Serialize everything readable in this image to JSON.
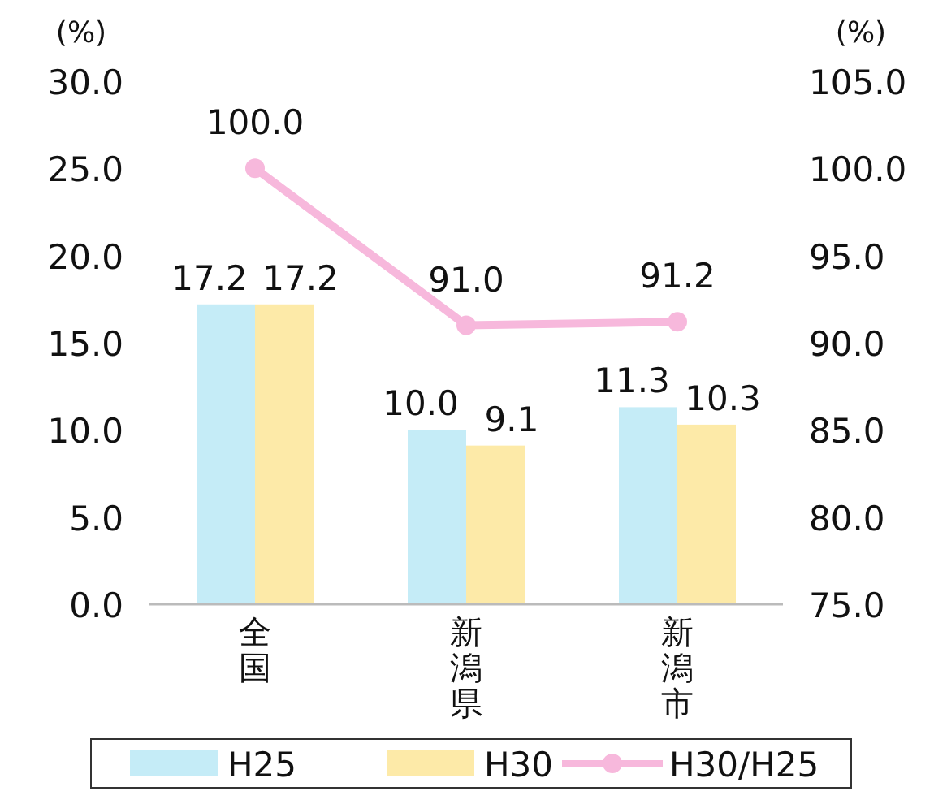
{
  "chart_data": {
    "type": "bar",
    "categories": [
      "全国",
      "新潟県",
      "新潟市"
    ],
    "series": [
      {
        "name": "H25",
        "color": "#c5ecf7",
        "values": [
          17.2,
          10.0,
          11.3
        ],
        "value_labels": [
          "17.2",
          "10.0",
          "11.3"
        ]
      },
      {
        "name": "H30",
        "color": "#fdeaa8",
        "values": [
          17.2,
          9.1,
          10.3
        ],
        "value_labels": [
          "17.2",
          "9.1",
          "10.3"
        ]
      },
      {
        "name": "H30/H25",
        "type": "line",
        "axis": "y2",
        "color": "#f7b8dc",
        "marker": "circle",
        "values": [
          100.0,
          91.0,
          91.2
        ],
        "value_labels": [
          "100.0",
          "91.0",
          "91.2"
        ]
      }
    ],
    "ylabel": "(%)",
    "y2label": "(%)",
    "ylim": [
      0,
      30
    ],
    "yticks": [
      {
        "value": 0,
        "label": "0.0"
      },
      {
        "value": 5,
        "label": "5.0"
      },
      {
        "value": 10,
        "label": "10.0"
      },
      {
        "value": 15,
        "label": "15.0"
      },
      {
        "value": 20,
        "label": "20.0"
      },
      {
        "value": 25,
        "label": "25.0"
      },
      {
        "value": 30,
        "label": "30.0"
      }
    ],
    "y2lim": [
      75,
      105
    ],
    "y2ticks": [
      {
        "value": 75,
        "label": "75.0"
      },
      {
        "value": 80,
        "label": "80.0"
      },
      {
        "value": 85,
        "label": "85.0"
      },
      {
        "value": 90,
        "label": "90.0"
      },
      {
        "value": 95,
        "label": "95.0"
      },
      {
        "value": 100,
        "label": "100.0"
      },
      {
        "value": 105,
        "label": "105.0"
      }
    ],
    "legend": "bottom"
  }
}
